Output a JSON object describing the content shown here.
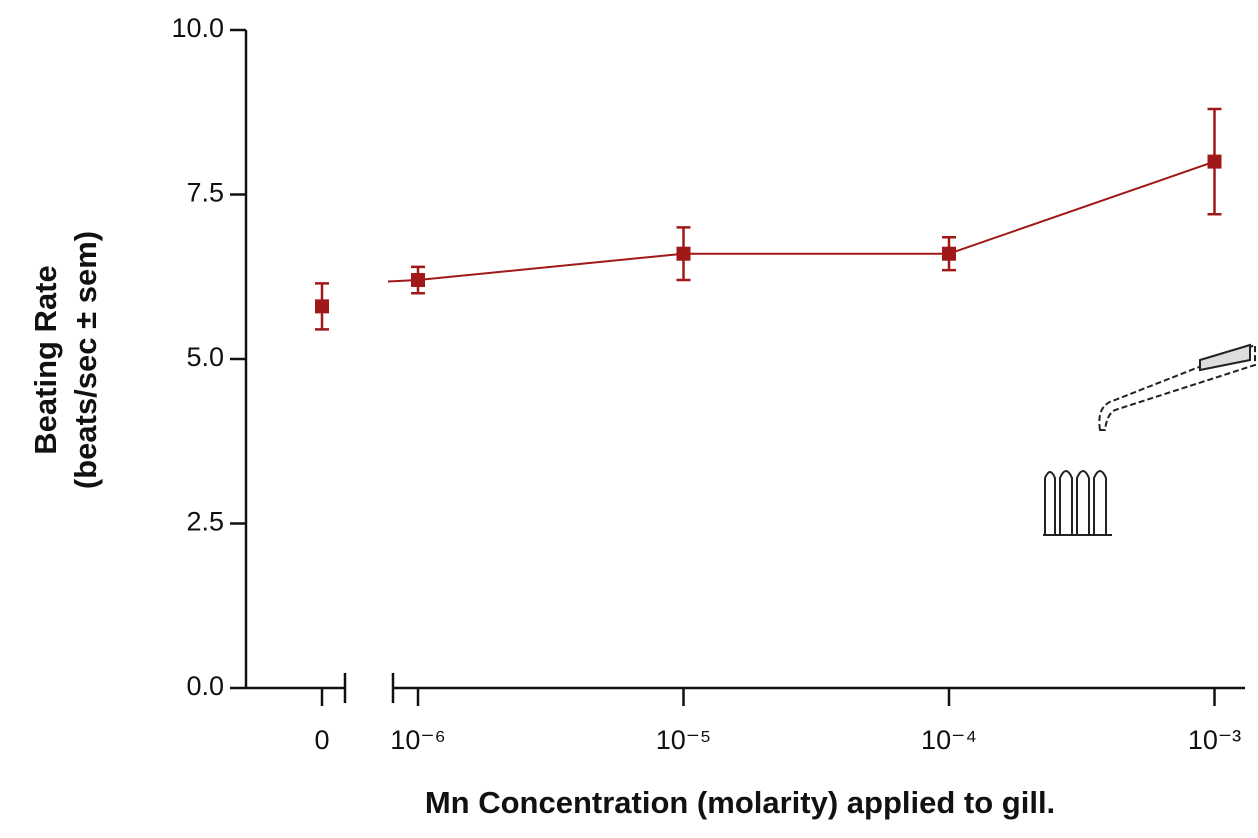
{
  "chart_data": {
    "type": "line",
    "x_label": "Mn Concentration (molarity) applied to gill.",
    "y_label": [
      "Beating Rate",
      "(beats/sec ± sem)"
    ],
    "categories": [
      "0",
      "10⁻⁶",
      "10⁻⁵",
      "10⁻⁴",
      "10⁻³"
    ],
    "series": [
      {
        "color": "#a01818",
        "values": [
          5.8,
          6.2,
          6.6,
          6.6,
          8.0
        ],
        "errors": [
          0.35,
          0.2,
          0.4,
          0.25,
          0.8
        ]
      }
    ],
    "ylim": [
      0,
      10
    ],
    "yticks": [
      {
        "value": 0,
        "label": "0.0"
      },
      {
        "value": 2.5,
        "label": "2.5"
      },
      {
        "value": 5,
        "label": "5.0"
      },
      {
        "value": 7.5,
        "label": "7.5"
      },
      {
        "value": 10,
        "label": "10.0"
      }
    ]
  }
}
